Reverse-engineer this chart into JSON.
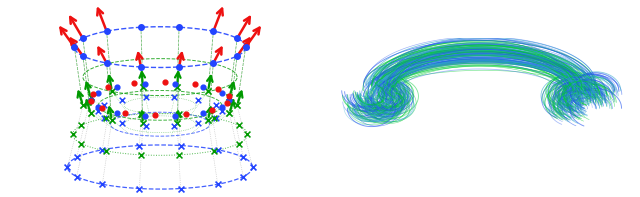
{
  "fig_width": 6.4,
  "fig_height": 1.97,
  "dpi": 100,
  "background": "#ffffff",
  "left_panel": {
    "n_rings": 4,
    "n_pts": 14,
    "blue_color": "#2244ff",
    "green_color": "#009900",
    "red_color": "#ee1111",
    "gray_color": "#888888",
    "perspective_tilt": 0.28
  },
  "right_panel": {
    "blue_color": "#2255ee",
    "green_color": "#00cc33",
    "cyan_color": "#33aacc",
    "n_main": 150
  }
}
